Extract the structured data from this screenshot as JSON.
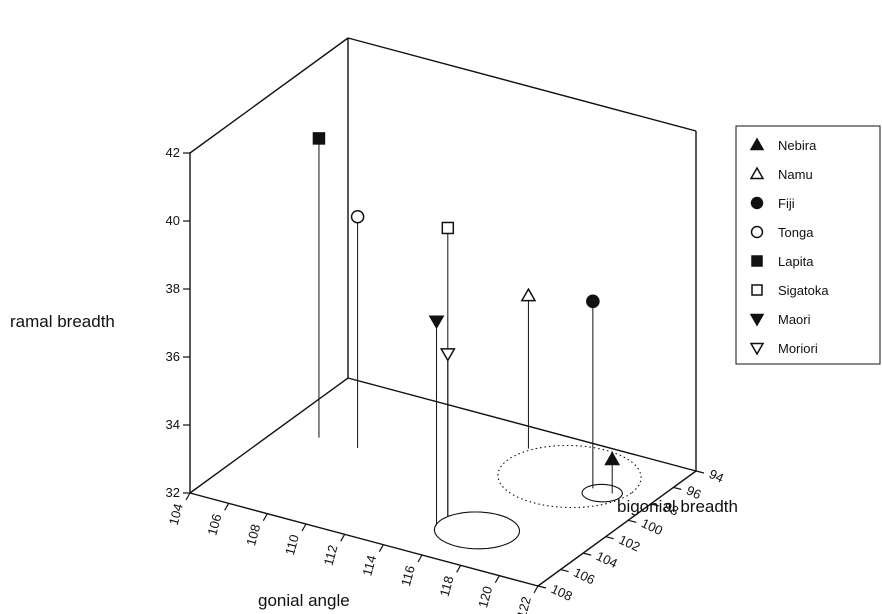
{
  "chart_data": {
    "type": "scatter",
    "subtype": "3d-scatter-with-drop-lines",
    "title": "",
    "axes": {
      "x": {
        "label": "gonial angle",
        "range": [
          104,
          122
        ],
        "ticks": [
          "104",
          "106",
          "108",
          "110",
          "112",
          "114",
          "116",
          "118",
          "120",
          "122"
        ]
      },
      "y": {
        "label": "bigonial breadth",
        "range": [
          94,
          108
        ],
        "ticks": [
          "94",
          "96",
          "98",
          "100",
          "102",
          "104",
          "106",
          "108"
        ]
      },
      "z": {
        "label": "ramal breadth",
        "range": [
          32,
          42
        ],
        "ticks": [
          "32",
          "34",
          "36",
          "38",
          "40",
          "42"
        ]
      }
    },
    "grid": false,
    "legend_position": "right",
    "series": [
      {
        "name": "Nebira",
        "marker": "triangle-up-filled",
        "gonial_angle": 120.0,
        "bigonial_breadth": 98,
        "ramal_breadth": 33.0
      },
      {
        "name": "Namu",
        "marker": "triangle-up-open",
        "gonial_angle": 114.5,
        "bigonial_breadth": 96,
        "ramal_breadth": 36.5
      },
      {
        "name": "Fiji",
        "marker": "circle-filled",
        "gonial_angle": 119.0,
        "bigonial_breadth": 98,
        "ramal_breadth": 37.5
      },
      {
        "name": "Tonga",
        "marker": "circle-open",
        "gonial_angle": 108.0,
        "bigonial_breadth": 100,
        "ramal_breadth": 38.8
      },
      {
        "name": "Lapita",
        "marker": "square-filled",
        "gonial_angle": 106.0,
        "bigonial_breadth": 100,
        "ramal_breadth": 40.8
      },
      {
        "name": "Sigatoka",
        "marker": "square-open",
        "gonial_angle": 115.0,
        "bigonial_breadth": 104,
        "ramal_breadth": 40.5
      },
      {
        "name": "Maori",
        "marker": "triangle-down-filled",
        "gonial_angle": 115.0,
        "bigonial_breadth": 105,
        "ramal_breadth": 38.0
      },
      {
        "name": "Moriori",
        "marker": "triangle-down-open",
        "gonial_angle": 115.0,
        "bigonial_breadth": 104,
        "ramal_breadth": 36.8
      }
    ],
    "floor_ellipses": [
      {
        "style": "solid",
        "center": {
          "gonial_angle": 116.8,
          "bigonial_breadth": 104.5
        },
        "radius": {
          "gonial_angle": 1.9,
          "bigonial_breadth": 1.9
        }
      },
      {
        "style": "dotted",
        "center": {
          "gonial_angle": 117.5,
          "bigonial_breadth": 97.5
        },
        "radius": {
          "gonial_angle": 3.2,
          "bigonial_breadth": 3.2
        }
      },
      {
        "style": "solid",
        "center": {
          "gonial_angle": 119.6,
          "bigonial_breadth": 98.2
        },
        "radius": {
          "gonial_angle": 0.9,
          "bigonial_breadth": 0.9
        }
      }
    ]
  }
}
